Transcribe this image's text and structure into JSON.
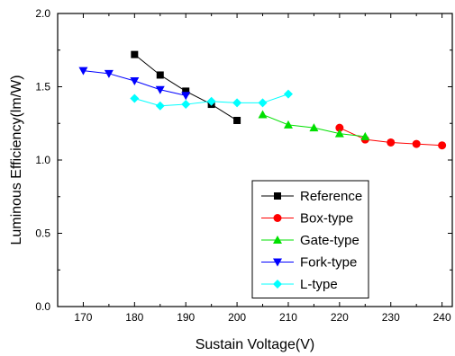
{
  "chart_data": {
    "type": "line",
    "xlabel": "Sustain Voltage(V)",
    "ylabel": "Luminous Efficiency(lm/W)",
    "xlim": [
      165,
      242
    ],
    "ylim": [
      0.0,
      2.0
    ],
    "xticks": [
      170,
      180,
      190,
      200,
      210,
      220,
      230,
      240
    ],
    "xtick_labels": [
      "170",
      "180",
      "190",
      "200",
      "210",
      "220",
      "230",
      "240"
    ],
    "yticks": [
      0.0,
      0.5,
      1.0,
      1.5,
      2.0
    ],
    "ytick_labels": [
      "0.0",
      "0.5",
      "1.0",
      "1.5",
      "2.0"
    ],
    "legend_position": "bottom-right",
    "grid": false,
    "series": [
      {
        "name": "Reference",
        "marker": "square",
        "color": "#000000",
        "x": [
          180,
          185,
          190,
          195,
          200
        ],
        "y": [
          1.72,
          1.58,
          1.47,
          1.38,
          1.27
        ]
      },
      {
        "name": "Box-type",
        "marker": "circle",
        "color": "#ff0000",
        "x": [
          220,
          225,
          230,
          235,
          240
        ],
        "y": [
          1.22,
          1.14,
          1.12,
          1.11,
          1.1
        ]
      },
      {
        "name": "Gate-type",
        "marker": "triangle-up",
        "color": "#00e000",
        "x": [
          205,
          210,
          215,
          220,
          225
        ],
        "y": [
          1.31,
          1.24,
          1.22,
          1.18,
          1.16
        ]
      },
      {
        "name": "Fork-type",
        "marker": "triangle-down",
        "color": "#0000ff",
        "x": [
          170,
          175,
          180,
          185,
          190
        ],
        "y": [
          1.61,
          1.59,
          1.54,
          1.48,
          1.44
        ]
      },
      {
        "name": "L-type",
        "marker": "diamond",
        "color": "#00ffff",
        "x": [
          180,
          185,
          190,
          195,
          200,
          205,
          210
        ],
        "y": [
          1.42,
          1.37,
          1.38,
          1.4,
          1.39,
          1.39,
          1.45
        ]
      }
    ]
  }
}
